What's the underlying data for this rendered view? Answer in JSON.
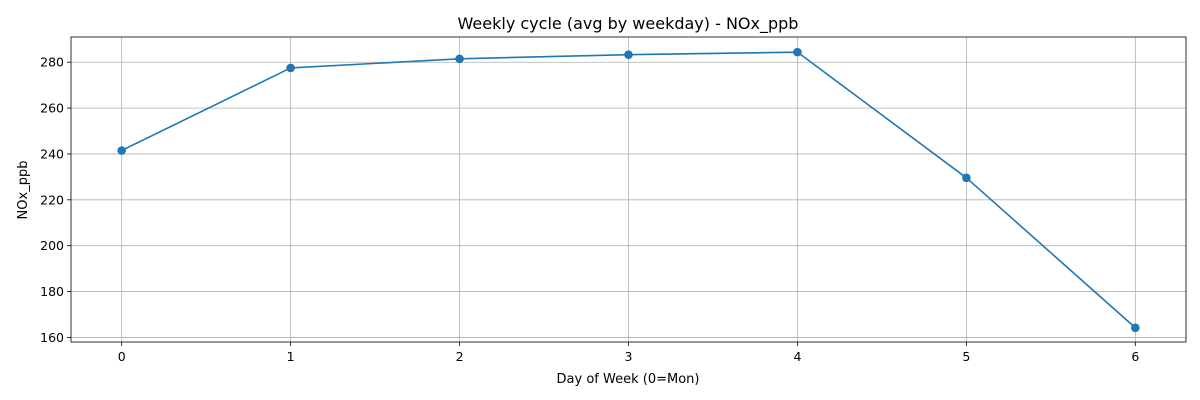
{
  "chart_data": {
    "type": "line",
    "title": "Weekly cycle (avg by weekday) - NOx_ppb",
    "xlabel": "Day of Week (0=Mon)",
    "ylabel": "NOx_ppb",
    "x": [
      0,
      1,
      2,
      3,
      4,
      5,
      6
    ],
    "x_ticks": [
      "0",
      "1",
      "2",
      "3",
      "4",
      "5",
      "6"
    ],
    "xlim": [
      -0.3,
      6.3
    ],
    "y_ticks": [
      160,
      180,
      200,
      220,
      240,
      260,
      280
    ],
    "ylim": [
      158,
      291
    ],
    "grid": true,
    "series": [
      {
        "values": [
          241.5,
          277.5,
          281.5,
          283.3,
          284.4,
          229.6,
          164.2
        ],
        "color": "#1f77b4",
        "marker": "circle"
      }
    ]
  }
}
